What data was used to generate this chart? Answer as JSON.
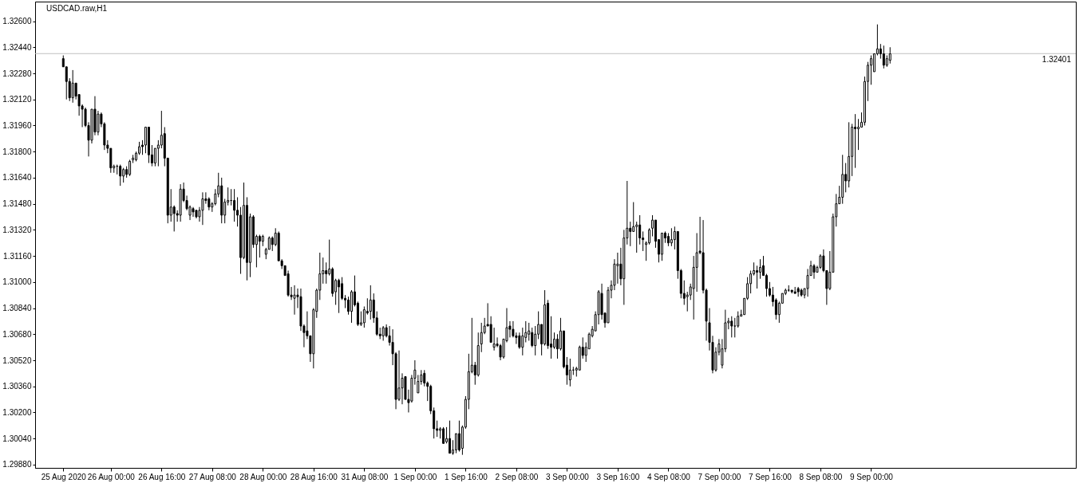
{
  "chart_data": {
    "type": "candlestick",
    "title": "USDCAD.raw,H1",
    "color": "#000000",
    "categories": [
      "25 Aug 2020",
      null,
      null,
      null,
      null,
      null,
      null,
      null,
      null,
      null,
      null,
      null,
      null,
      null,
      null,
      "26 Aug 00:00",
      null,
      null,
      null,
      null,
      null,
      null,
      null,
      null,
      null,
      null,
      null,
      null,
      null,
      null,
      null,
      "26 Aug 16:00",
      null,
      null,
      null,
      null,
      null,
      null,
      null,
      null,
      null,
      null,
      null,
      null,
      null,
      null,
      null,
      "27 Aug 08:00",
      null,
      null,
      null,
      null,
      null,
      null,
      null,
      null,
      null,
      null,
      null,
      null,
      null,
      null,
      null,
      "28 Aug 00:00",
      null,
      null,
      null,
      null,
      null,
      null,
      null,
      null,
      null,
      null,
      null,
      null,
      null,
      null,
      null,
      "28 Aug 16:00",
      null,
      null,
      null,
      null,
      null,
      null,
      null,
      null,
      null,
      null,
      null,
      null,
      null,
      null,
      null,
      "31 Aug 08:00",
      null,
      null,
      null,
      null,
      null,
      null,
      null,
      null,
      null,
      null,
      null,
      null,
      null,
      null,
      null,
      "1 Sep 00:00",
      null,
      null,
      null,
      null,
      null,
      null,
      null,
      null,
      null,
      null,
      null,
      null,
      null,
      null,
      null,
      "1 Sep 16:00",
      null,
      null,
      null,
      null,
      null,
      null,
      null,
      null,
      null,
      null,
      null,
      null,
      null,
      null,
      null,
      "2 Sep 08:00",
      null,
      null,
      null,
      null,
      null,
      null,
      null,
      null,
      null,
      null,
      null,
      null,
      null,
      null,
      null,
      "3 Sep 00:00",
      null,
      null,
      null,
      null,
      null,
      null,
      null,
      null,
      null,
      null,
      null,
      null,
      null,
      null,
      null,
      "3 Sep 16:00",
      null,
      null,
      null,
      null,
      null,
      null,
      null,
      null,
      null,
      null,
      null,
      null,
      null,
      null,
      null,
      "4 Sep 08:00",
      null,
      null,
      null,
      null,
      null,
      null,
      null,
      null,
      null,
      null,
      null,
      null,
      null,
      null,
      null,
      "7 Sep 00:00",
      null,
      null,
      null,
      null,
      null,
      null,
      null,
      null,
      null,
      null,
      null,
      null,
      null,
      null,
      null,
      "7 Sep 16:00",
      null,
      null,
      null,
      null,
      null,
      null,
      null,
      null,
      null,
      null,
      null,
      null,
      null,
      null,
      null,
      "8 Sep 08:00",
      null,
      null,
      null,
      null,
      null,
      null,
      null,
      null,
      null,
      null,
      null,
      null,
      null,
      null,
      null,
      "9 Sep 00:00",
      null,
      null,
      null,
      null,
      null,
      null
    ],
    "ohlc": [
      [
        1.3237,
        1.3239,
        1.3232,
        1.3232
      ],
      [
        1.3232,
        1.3232,
        1.3212,
        1.3223
      ],
      [
        1.3223,
        1.3225,
        1.3211,
        1.3213
      ],
      [
        1.3213,
        1.323,
        1.321,
        1.3222
      ],
      [
        1.3222,
        1.3222,
        1.3212,
        1.3214
      ],
      [
        1.3215,
        1.3215,
        1.3202,
        1.3208
      ],
      [
        1.3208,
        1.3209,
        1.3195,
        1.3206
      ],
      [
        1.3206,
        1.3207,
        1.3195,
        1.3196
      ],
      [
        1.3196,
        1.3198,
        1.3177,
        1.3187
      ],
      [
        1.3187,
        1.3206,
        1.3185,
        1.3206
      ],
      [
        1.3206,
        1.3214,
        1.319,
        1.3192
      ],
      [
        1.3192,
        1.3205,
        1.319,
        1.3203
      ],
      [
        1.3203,
        1.3204,
        1.3195,
        1.3197
      ],
      [
        1.3197,
        1.3198,
        1.3181,
        1.3184
      ],
      [
        1.3184,
        1.3187,
        1.3179,
        1.3182
      ],
      [
        1.3182,
        1.3182,
        1.3167,
        1.317
      ],
      [
        1.317,
        1.3172,
        1.3167,
        1.3171
      ],
      [
        1.3171,
        1.3172,
        1.3166,
        1.3171
      ],
      [
        1.3171,
        1.3172,
        1.3159,
        1.3165
      ],
      [
        1.3165,
        1.317,
        1.3161,
        1.3169
      ],
      [
        1.3169,
        1.3171,
        1.3164,
        1.3166
      ],
      [
        1.3166,
        1.3175,
        1.3165,
        1.3174
      ],
      [
        1.3175,
        1.3178,
        1.3173,
        1.3176
      ],
      [
        1.3175,
        1.318,
        1.3174,
        1.3179
      ],
      [
        1.3179,
        1.3186,
        1.3178,
        1.3183
      ],
      [
        1.3184,
        1.3187,
        1.3178,
        1.3183
      ],
      [
        1.3184,
        1.3195,
        1.3179,
        1.3195
      ],
      [
        1.3195,
        1.3195,
        1.3173,
        1.3178
      ],
      [
        1.3178,
        1.3184,
        1.3171,
        1.3173
      ],
      [
        1.3173,
        1.3182,
        1.3171,
        1.3182
      ],
      [
        1.3182,
        1.3187,
        1.3171,
        1.3184
      ],
      [
        1.3184,
        1.3205,
        1.3182,
        1.319
      ],
      [
        1.3191,
        1.3195,
        1.3171,
        1.3176
      ],
      [
        1.3176,
        1.3176,
        1.3136,
        1.3141
      ],
      [
        1.3141,
        1.3157,
        1.3137,
        1.3146
      ],
      [
        1.3146,
        1.3147,
        1.3131,
        1.3142
      ],
      [
        1.3142,
        1.3144,
        1.3137,
        1.3141
      ],
      [
        1.3141,
        1.316,
        1.3137,
        1.3157
      ],
      [
        1.3157,
        1.3161,
        1.3149,
        1.315
      ],
      [
        1.315,
        1.3153,
        1.3144,
        1.3145
      ],
      [
        1.3141,
        1.3147,
        1.3138,
        1.3146
      ],
      [
        1.3145,
        1.3146,
        1.314,
        1.3143
      ],
      [
        1.3144,
        1.3144,
        1.3139,
        1.314
      ],
      [
        1.314,
        1.3146,
        1.3137,
        1.3144
      ],
      [
        1.3144,
        1.3155,
        1.3135,
        1.3151
      ],
      [
        1.3151,
        1.3155,
        1.3148,
        1.315
      ],
      [
        1.3151,
        1.3152,
        1.3144,
        1.3146
      ],
      [
        1.3146,
        1.3149,
        1.3143,
        1.3148
      ],
      [
        1.3148,
        1.3157,
        1.3147,
        1.3154
      ],
      [
        1.3154,
        1.3167,
        1.3152,
        1.3159
      ],
      [
        1.3159,
        1.3164,
        1.3136,
        1.3141
      ],
      [
        1.3141,
        1.3151,
        1.3136,
        1.3149
      ],
      [
        1.3149,
        1.3158,
        1.3147,
        1.315
      ],
      [
        1.315,
        1.3157,
        1.3147,
        1.315
      ],
      [
        1.315,
        1.3157,
        1.3137,
        1.3144
      ],
      [
        1.3144,
        1.3152,
        1.3134,
        1.3141
      ],
      [
        1.3141,
        1.3146,
        1.3105,
        1.3115
      ],
      [
        1.3115,
        1.3161,
        1.3114,
        1.3147
      ],
      [
        1.3147,
        1.3152,
        1.3101,
        1.3112
      ],
      [
        1.3112,
        1.3142,
        1.3103,
        1.314
      ],
      [
        1.314,
        1.3141,
        1.3121,
        1.3123
      ],
      [
        1.3123,
        1.3129,
        1.3109,
        1.3128
      ],
      [
        1.3128,
        1.3129,
        1.3115,
        1.3125
      ],
      [
        1.3125,
        1.3129,
        1.3122,
        1.3128
      ],
      [
        1.3117,
        1.3121,
        1.3114,
        1.312
      ],
      [
        1.312,
        1.3128,
        1.312,
        1.3127
      ],
      [
        1.3127,
        1.3128,
        1.3119,
        1.3123
      ],
      [
        1.3123,
        1.3133,
        1.3122,
        1.313
      ],
      [
        1.313,
        1.3131,
        1.3113,
        1.3113
      ],
      [
        1.3113,
        1.3114,
        1.3108,
        1.311
      ],
      [
        1.311,
        1.311,
        1.3104,
        1.3104
      ],
      [
        1.3105,
        1.3107,
        1.3091,
        1.3092
      ],
      [
        1.3092,
        1.3097,
        1.3089,
        1.3091
      ],
      [
        1.309,
        1.3098,
        1.308,
        1.3092
      ],
      [
        1.3092,
        1.3096,
        1.3084,
        1.3091
      ],
      [
        1.3091,
        1.3096,
        1.307,
        1.3073
      ],
      [
        1.3073,
        1.3074,
        1.306,
        1.3069
      ],
      [
        1.307,
        1.3082,
        1.3065,
        1.3067
      ],
      [
        1.3067,
        1.3067,
        1.3051,
        1.3056
      ],
      [
        1.3056,
        1.3084,
        1.3047,
        1.3083
      ],
      [
        1.3082,
        1.3096,
        1.3078,
        1.3095
      ],
      [
        1.3095,
        1.3118,
        1.3089,
        1.3105
      ],
      [
        1.3105,
        1.3115,
        1.3099,
        1.3107
      ],
      [
        1.3107,
        1.3112,
        1.3099,
        1.3105
      ],
      [
        1.3105,
        1.3126,
        1.3104,
        1.3108
      ],
      [
        1.3108,
        1.3109,
        1.3091,
        1.3093
      ],
      [
        1.3094,
        1.3102,
        1.3086,
        1.3101
      ],
      [
        1.3101,
        1.3102,
        1.3081,
        1.3097
      ],
      [
        1.3099,
        1.3103,
        1.3089,
        1.309
      ],
      [
        1.309,
        1.3092,
        1.3084,
        1.3089
      ],
      [
        1.3089,
        1.3091,
        1.308,
        1.3082
      ],
      [
        1.3082,
        1.3095,
        1.3075,
        1.3094
      ],
      [
        1.3094,
        1.3104,
        1.3085,
        1.3086
      ],
      [
        1.3087,
        1.3088,
        1.3073,
        1.3074
      ],
      [
        1.3074,
        1.3082,
        1.3073,
        1.3075
      ],
      [
        1.3075,
        1.3085,
        1.3072,
        1.3083
      ],
      [
        1.3082,
        1.309,
        1.308,
        1.3081
      ],
      [
        1.3082,
        1.3098,
        1.3077,
        1.3089
      ],
      [
        1.3089,
        1.3093,
        1.3075,
        1.3078
      ],
      [
        1.3078,
        1.3082,
        1.3067,
        1.3068
      ],
      [
        1.3068,
        1.3072,
        1.3065,
        1.3067
      ],
      [
        1.3067,
        1.3073,
        1.3064,
        1.3072
      ],
      [
        1.3072,
        1.3074,
        1.3066,
        1.3067
      ],
      [
        1.3067,
        1.3073,
        1.3061,
        1.3063
      ],
      [
        1.3063,
        1.3071,
        1.3049,
        1.3056
      ],
      [
        1.3056,
        1.3057,
        1.3022,
        1.3028
      ],
      [
        1.3028,
        1.3058,
        1.3027,
        1.3035
      ],
      [
        1.3035,
        1.3044,
        1.3025,
        1.3041
      ],
      [
        1.3042,
        1.3042,
        1.3028,
        1.3028
      ],
      [
        1.3028,
        1.3034,
        1.302,
        1.3026
      ],
      [
        1.3027,
        1.3043,
        1.3026,
        1.3041
      ],
      [
        1.3041,
        1.3052,
        1.3037,
        1.3046
      ],
      [
        1.3032,
        1.3043,
        1.3032,
        1.3039
      ],
      [
        1.3039,
        1.3046,
        1.3037,
        1.3043
      ],
      [
        1.3044,
        1.3046,
        1.3036,
        1.3038
      ],
      [
        1.3038,
        1.3039,
        1.3027,
        1.3036
      ],
      [
        1.3036,
        1.3037,
        1.3019,
        1.3021
      ],
      [
        1.3021,
        1.3023,
        1.3004,
        1.301
      ],
      [
        1.301,
        1.3015,
        1.3005,
        1.3009
      ],
      [
        1.3009,
        1.3011,
        1.3004,
        1.301
      ],
      [
        1.301,
        1.3011,
        1.3001,
        1.3001
      ],
      [
        1.3002,
        1.3011,
        1.3001,
        1.3004
      ],
      [
        1.3004,
        1.3015,
        1.2995,
        1.2995
      ],
      [
        1.2995,
        1.3003,
        1.2994,
        1.2997
      ],
      [
        1.2997,
        1.3007,
        1.2995,
        1.3007
      ],
      [
        1.3007,
        1.3015,
        1.2996,
        1.2997
      ],
      [
        1.2998,
        1.3012,
        1.2994,
        1.3011
      ],
      [
        1.3011,
        1.303,
        1.301,
        1.3028
      ],
      [
        1.3028,
        1.3056,
        1.3022,
        1.3045
      ],
      [
        1.3045,
        1.3078,
        1.3044,
        1.3049
      ],
      [
        1.3049,
        1.3051,
        1.3037,
        1.3043
      ],
      [
        1.3043,
        1.3069,
        1.3042,
        1.3061
      ],
      [
        1.3062,
        1.3075,
        1.3057,
        1.3069
      ],
      [
        1.3069,
        1.3078,
        1.3068,
        1.3073
      ],
      [
        1.3074,
        1.3087,
        1.3073,
        1.3073
      ],
      [
        1.3074,
        1.3079,
        1.3063,
        1.3063
      ],
      [
        1.306,
        1.3072,
        1.3058,
        1.3062
      ],
      [
        1.3062,
        1.3066,
        1.306,
        1.3061
      ],
      [
        1.3061,
        1.3062,
        1.3052,
        1.3054
      ],
      [
        1.3054,
        1.3065,
        1.3053,
        1.3065
      ],
      [
        1.3064,
        1.3084,
        1.3063,
        1.3072
      ],
      [
        1.3073,
        1.3076,
        1.3066,
        1.3071
      ],
      [
        1.3071,
        1.3076,
        1.3066,
        1.3067
      ],
      [
        1.3067,
        1.3069,
        1.3062,
        1.3066
      ],
      [
        1.3067,
        1.3069,
        1.3059,
        1.306
      ],
      [
        1.306,
        1.3072,
        1.3055,
        1.3067
      ],
      [
        1.3066,
        1.3076,
        1.3063,
        1.3069
      ],
      [
        1.3068,
        1.3075,
        1.3064,
        1.307
      ],
      [
        1.3069,
        1.3072,
        1.306,
        1.3061
      ],
      [
        1.3061,
        1.3073,
        1.3055,
        1.3068
      ],
      [
        1.3068,
        1.3082,
        1.3065,
        1.3074
      ],
      [
        1.3074,
        1.3074,
        1.3055,
        1.3062
      ],
      [
        1.3062,
        1.3095,
        1.3061,
        1.3086
      ],
      [
        1.3087,
        1.3089,
        1.3059,
        1.3061
      ],
      [
        1.3062,
        1.3079,
        1.3053,
        1.306
      ],
      [
        1.306,
        1.3069,
        1.3059,
        1.3065
      ],
      [
        1.3065,
        1.3068,
        1.3053,
        1.3059
      ],
      [
        1.3059,
        1.3078,
        1.3058,
        1.307
      ],
      [
        1.307,
        1.307,
        1.3047,
        1.3048
      ],
      [
        1.3049,
        1.3054,
        1.3037,
        1.3043
      ],
      [
        1.304,
        1.3053,
        1.3036,
        1.3046
      ],
      [
        1.3046,
        1.3048,
        1.3043,
        1.3046
      ],
      [
        1.3046,
        1.3048,
        1.3042,
        1.3047
      ],
      [
        1.3046,
        1.3061,
        1.3046,
        1.306
      ],
      [
        1.306,
        1.3066,
        1.3053,
        1.3055
      ],
      [
        1.3055,
        1.3063,
        1.3051,
        1.306
      ],
      [
        1.3059,
        1.3069,
        1.3059,
        1.3068
      ],
      [
        1.3067,
        1.3073,
        1.3066,
        1.3071
      ],
      [
        1.307,
        1.3082,
        1.307,
        1.308
      ],
      [
        1.308,
        1.3095,
        1.3074,
        1.3094
      ],
      [
        1.3093,
        1.3099,
        1.3077,
        1.308
      ],
      [
        1.3081,
        1.3081,
        1.3072,
        1.3075
      ],
      [
        1.3075,
        1.3097,
        1.3075,
        1.3095
      ],
      [
        1.3095,
        1.3101,
        1.309,
        1.3098
      ],
      [
        1.3098,
        1.3114,
        1.3095,
        1.3111
      ],
      [
        1.311,
        1.3118,
        1.3099,
        1.3111
      ],
      [
        1.3111,
        1.3121,
        1.3098,
        1.3102
      ],
      [
        1.3102,
        1.3132,
        1.3086,
        1.3127
      ],
      [
        1.3127,
        1.3162,
        1.3123,
        1.3133
      ],
      [
        1.3133,
        1.3137,
        1.3122,
        1.3131
      ],
      [
        1.3131,
        1.3149,
        1.3131,
        1.3134
      ],
      [
        1.3134,
        1.3137,
        1.3118,
        1.3135
      ],
      [
        1.3135,
        1.3141,
        1.3123,
        1.3127
      ],
      [
        1.3127,
        1.3131,
        1.3119,
        1.3126
      ],
      [
        1.3123,
        1.3125,
        1.3113,
        1.3124
      ],
      [
        1.3124,
        1.3133,
        1.3123,
        1.3132
      ],
      [
        1.3133,
        1.3141,
        1.3128,
        1.3138
      ],
      [
        1.3138,
        1.3138,
        1.3121,
        1.3125
      ],
      [
        1.3126,
        1.3126,
        1.3112,
        1.3117
      ],
      [
        1.3117,
        1.313,
        1.3113,
        1.313
      ],
      [
        1.313,
        1.3131,
        1.3124,
        1.3127
      ],
      [
        1.3128,
        1.313,
        1.3122,
        1.3124
      ],
      [
        1.3124,
        1.3133,
        1.3122,
        1.3126
      ],
      [
        1.3126,
        1.3134,
        1.312,
        1.3131
      ],
      [
        1.3131,
        1.3131,
        1.3102,
        1.3107
      ],
      [
        1.3107,
        1.3108,
        1.309,
        1.3093
      ],
      [
        1.3093,
        1.3101,
        1.3086,
        1.309
      ],
      [
        1.3091,
        1.3094,
        1.3082,
        1.3092
      ],
      [
        1.3092,
        1.3099,
        1.3089,
        1.3097
      ],
      [
        1.3096,
        1.3116,
        1.3077,
        1.3109
      ],
      [
        1.3109,
        1.313,
        1.3094,
        1.3118
      ],
      [
        1.3119,
        1.314,
        1.3117,
        1.3118
      ],
      [
        1.3118,
        1.3138,
        1.3093,
        1.3095
      ],
      [
        1.3095,
        1.3096,
        1.3064,
        1.3076
      ],
      [
        1.3075,
        1.3084,
        1.3058,
        1.3063
      ],
      [
        1.3063,
        1.3067,
        1.3044,
        1.3046
      ],
      [
        1.3046,
        1.306,
        1.3045,
        1.3057
      ],
      [
        1.3057,
        1.3065,
        1.3055,
        1.3062
      ],
      [
        1.3049,
        1.3065,
        1.3047,
        1.3059
      ],
      [
        1.3059,
        1.3083,
        1.3057,
        1.3075
      ],
      [
        1.3075,
        1.3078,
        1.3071,
        1.3076
      ],
      [
        1.3076,
        1.3079,
        1.3066,
        1.3073
      ],
      [
        1.3073,
        1.3078,
        1.3066,
        1.3073
      ],
      [
        1.3073,
        1.3082,
        1.3072,
        1.3079
      ],
      [
        1.3079,
        1.3083,
        1.3079,
        1.308
      ],
      [
        1.308,
        1.309,
        1.308,
        1.309
      ],
      [
        1.309,
        1.3103,
        1.3089,
        1.3099
      ],
      [
        1.3099,
        1.3107,
        1.3093,
        1.3105
      ],
      [
        1.3105,
        1.3112,
        1.3104,
        1.3107
      ],
      [
        1.3107,
        1.311,
        1.3096,
        1.3106
      ],
      [
        1.3106,
        1.3114,
        1.3102,
        1.3109
      ],
      [
        1.311,
        1.3116,
        1.3104,
        1.3104
      ],
      [
        1.3104,
        1.3105,
        1.3091,
        1.3096
      ],
      [
        1.3096,
        1.31,
        1.3091,
        1.3092
      ],
      [
        1.3092,
        1.3097,
        1.3085,
        1.3088
      ],
      [
        1.3089,
        1.309,
        1.3077,
        1.308
      ],
      [
        1.308,
        1.3088,
        1.3075,
        1.3087
      ],
      [
        1.3087,
        1.3093,
        1.3087,
        1.3093
      ],
      [
        1.3093,
        1.3096,
        1.3092,
        1.3095
      ],
      [
        1.3095,
        1.3098,
        1.3094,
        1.3095
      ],
      [
        1.3095,
        1.3095,
        1.3093,
        1.3094
      ],
      [
        1.3094,
        1.3097,
        1.3093,
        1.3093
      ],
      [
        1.3096,
        1.3097,
        1.3091,
        1.3094
      ],
      [
        1.3095,
        1.3096,
        1.3091,
        1.3092
      ],
      [
        1.3092,
        1.3096,
        1.309,
        1.3096
      ],
      [
        1.3096,
        1.3108,
        1.3091,
        1.3104
      ],
      [
        1.3104,
        1.3113,
        1.3104,
        1.311
      ],
      [
        1.311,
        1.3111,
        1.3102,
        1.3106
      ],
      [
        1.3106,
        1.311,
        1.3106,
        1.3109
      ],
      [
        1.3109,
        1.3117,
        1.3108,
        1.3116
      ],
      [
        1.3116,
        1.312,
        1.3106,
        1.3107
      ],
      [
        1.3107,
        1.3107,
        1.3086,
        1.3096
      ],
      [
        1.3096,
        1.3119,
        1.3095,
        1.3106
      ],
      [
        1.3106,
        1.3142,
        1.3106,
        1.314
      ],
      [
        1.314,
        1.3154,
        1.3134,
        1.3148
      ],
      [
        1.3148,
        1.3159,
        1.3148,
        1.3152
      ],
      [
        1.3152,
        1.3178,
        1.3148,
        1.3166
      ],
      [
        1.3166,
        1.3173,
        1.3155,
        1.3162
      ],
      [
        1.3162,
        1.3198,
        1.3158,
        1.3177
      ],
      [
        1.3177,
        1.3197,
        1.3165,
        1.3195
      ],
      [
        1.3195,
        1.3203,
        1.317,
        1.3194
      ],
      [
        1.3194,
        1.32,
        1.3181,
        1.3195
      ],
      [
        1.3195,
        1.3204,
        1.3195,
        1.3198
      ],
      [
        1.3198,
        1.3226,
        1.3196,
        1.3223
      ],
      [
        1.3223,
        1.3235,
        1.3211,
        1.3233
      ],
      [
        1.3233,
        1.3239,
        1.3221,
        1.3237
      ],
      [
        1.3229,
        1.324,
        1.3229,
        1.324
      ],
      [
        1.324,
        1.3258,
        1.3239,
        1.3243
      ],
      [
        1.3243,
        1.3246,
        1.3237,
        1.324
      ],
      [
        1.324,
        1.3245,
        1.3231,
        1.3233
      ],
      [
        1.3233,
        1.3239,
        1.3232,
        1.3237
      ],
      [
        1.3236,
        1.3244,
        1.3234,
        1.324
      ]
    ],
    "ylim": [
      1.2986,
      1.3272
    ],
    "yticks": [
      {
        "value": 1.326,
        "label": "1.32600"
      },
      {
        "value": 1.3244,
        "label": "1.32440"
      },
      {
        "value": 1.3228,
        "label": "1.32280"
      },
      {
        "value": 1.3212,
        "label": "1.32120"
      },
      {
        "value": 1.3196,
        "label": "1.31960"
      },
      {
        "value": 1.318,
        "label": "1.31800"
      },
      {
        "value": 1.3164,
        "label": "1.31640"
      },
      {
        "value": 1.3148,
        "label": "1.31480"
      },
      {
        "value": 1.3132,
        "label": "1.31320"
      },
      {
        "value": 1.3116,
        "label": "1.31160"
      },
      {
        "value": 1.31,
        "label": "1.31000"
      },
      {
        "value": 1.3084,
        "label": "1.30840"
      },
      {
        "value": 1.3068,
        "label": "1.30680"
      },
      {
        "value": 1.3052,
        "label": "1.30520"
      },
      {
        "value": 1.3036,
        "label": "1.30360"
      },
      {
        "value": 1.302,
        "label": "1.30200"
      },
      {
        "value": 1.3004,
        "label": "1.30040"
      },
      {
        "value": 1.2988,
        "label": "1.29880"
      }
    ],
    "ref_lines": [
      {
        "axis": "y",
        "value": 1.32401,
        "label": "1.32401",
        "color": "#c0c0c0"
      }
    ]
  }
}
